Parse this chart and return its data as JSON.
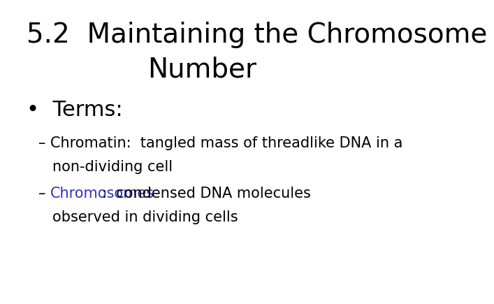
{
  "background_color": "#ffffff",
  "title_line1": "5.2  Maintaining the Chromosome",
  "title_line2": "Number",
  "title_color": "#000000",
  "title_fontsize": 28,
  "title_fontweight": "normal",
  "bullet_text": "•  Terms:",
  "bullet_color": "#000000",
  "bullet_fontsize": 22,
  "sub1_line1": "– Chromatin:  tangled mass of threadlike DNA in a",
  "sub1_line2": "non-dividing cell",
  "sub1_color": "#000000",
  "sub1_fontsize": 15,
  "sub2_dash": "– ",
  "sub2_keyword": "Chromosomes",
  "sub2_keyword_color": "#3333bb",
  "sub2_rest": ":  condensed DNA molecules",
  "sub2_line2": "observed in dividing cells",
  "sub2_color": "#000000",
  "sub2_fontsize": 15,
  "font": "DejaVu Sans"
}
